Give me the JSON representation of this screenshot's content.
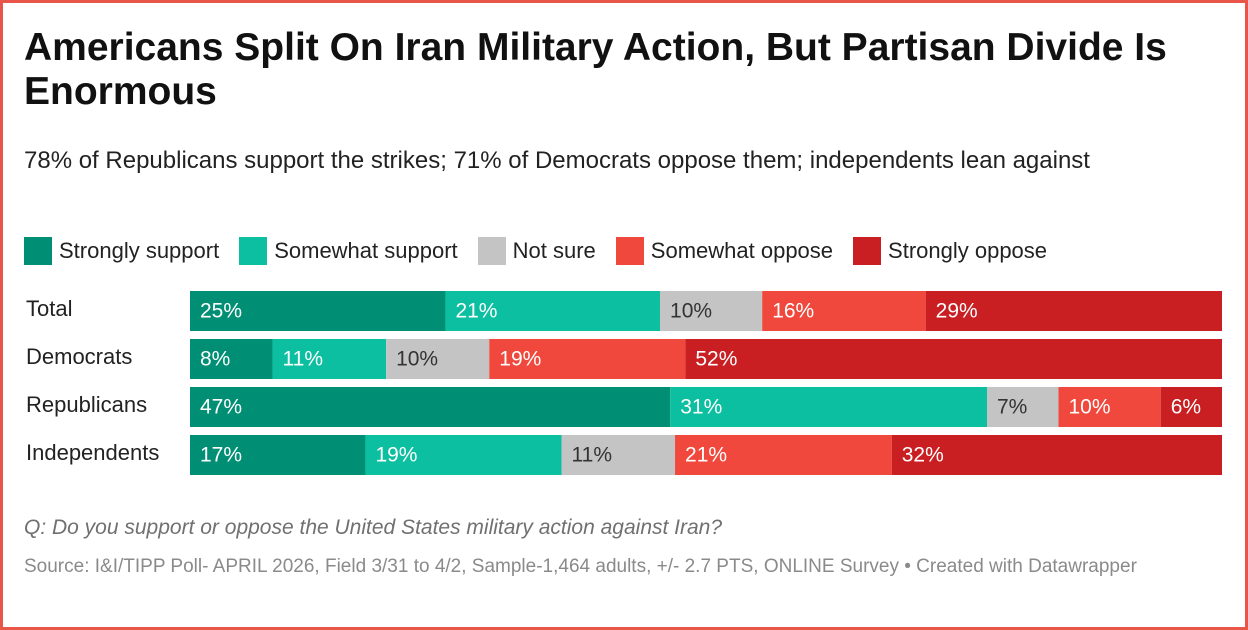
{
  "title": "Americans Split On Iran Military Action, But Partisan Divide Is Enormous",
  "subtitle": "78% of Republicans support the strikes; 71% of Democrats oppose them; independents lean against",
  "question": "Q: Do you support or oppose the United States military action against Iran?",
  "source": "Source: I&I/TIPP Poll- APRIL 2026, Field 3/31 to 4/2, Sample-1,464 adults, +/- 2.7 PTS, ONLINE Survey • Created with Datawrapper",
  "colors": {
    "frame": "#e8564a",
    "strongly_support": "#008f74",
    "somewhat_support": "#0cbfa0",
    "not_sure": "#c4c4c4",
    "somewhat_oppose": "#f0483c",
    "strongly_oppose": "#c91f22"
  },
  "chart_data": {
    "type": "bar",
    "orientation": "horizontal",
    "stacked": true,
    "categories": [
      "Total",
      "Democrats",
      "Republicans",
      "Independents"
    ],
    "series": [
      {
        "name": "Strongly support",
        "color": "#008f74",
        "label_color": "#ffffff",
        "values": [
          25,
          8,
          47,
          17
        ]
      },
      {
        "name": "Somewhat support",
        "color": "#0cbfa0",
        "label_color": "#ffffff",
        "values": [
          21,
          11,
          31,
          19
        ]
      },
      {
        "name": "Not sure",
        "color": "#c4c4c4",
        "label_color": "#333333",
        "values": [
          10,
          10,
          7,
          11
        ]
      },
      {
        "name": "Somewhat oppose",
        "color": "#f0483c",
        "label_color": "#ffffff",
        "values": [
          16,
          19,
          10,
          21
        ]
      },
      {
        "name": "Strongly oppose",
        "color": "#c91f22",
        "label_color": "#ffffff",
        "values": [
          29,
          52,
          6,
          32
        ]
      }
    ],
    "value_suffix": "%",
    "legend_position": "top-left",
    "grid": false
  }
}
